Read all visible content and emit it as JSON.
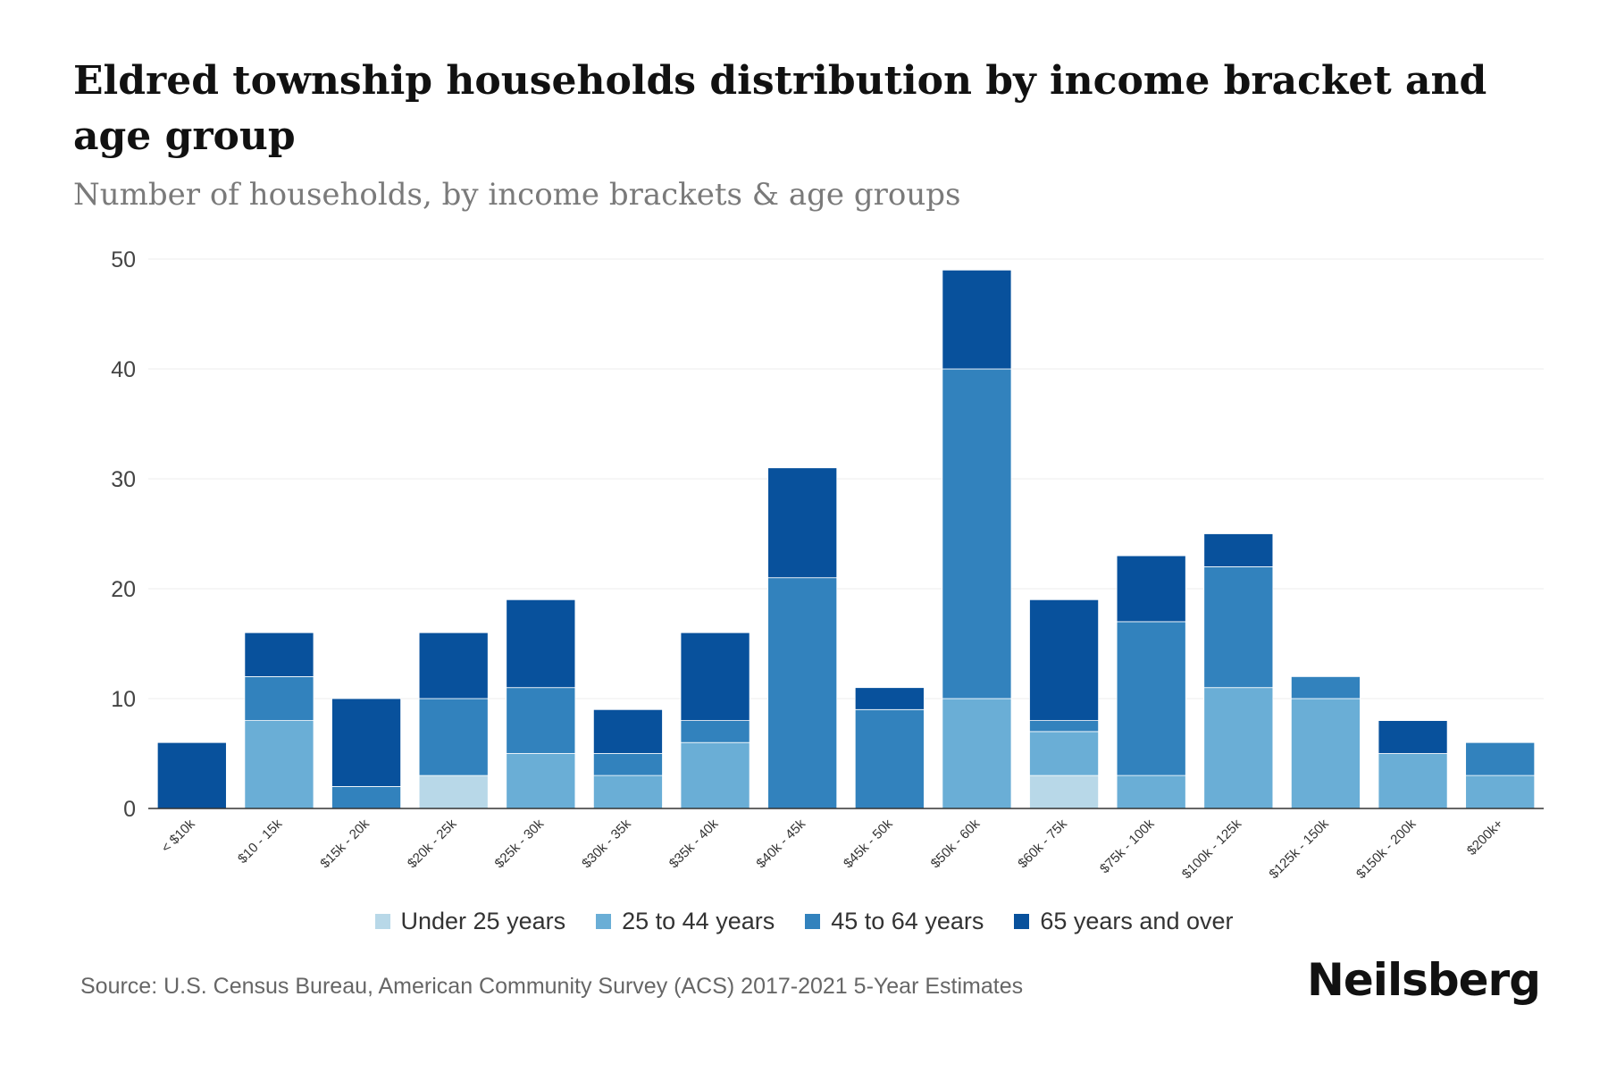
{
  "chart_data": {
    "type": "bar",
    "stacked": true,
    "title": "Eldred township households distribution by income bracket and age group",
    "subtitle": "Number of households, by income brackets & age groups",
    "xlabel": "",
    "ylabel": "",
    "ylim": [
      0,
      50
    ],
    "yticks": [
      0,
      10,
      20,
      30,
      40,
      50
    ],
    "grid": true,
    "legend_position": "bottom",
    "categories": [
      "< $10k",
      "$10 - 15k",
      "$15k - 20k",
      "$20k - 25k",
      "$25k - 30k",
      "$30k - 35k",
      "$35k - 40k",
      "$40k - 45k",
      "$45k - 50k",
      "$50k - 60k",
      "$60k - 75k",
      "$75k - 100k",
      "$100k - 125k",
      "$125k - 150k",
      "$150k - 200k",
      "$200k+"
    ],
    "series": [
      {
        "name": "Under 25 years",
        "color": "#b8d8e8",
        "values": [
          0,
          0,
          0,
          3,
          0,
          0,
          0,
          0,
          0,
          0,
          3,
          0,
          0,
          0,
          0,
          0
        ]
      },
      {
        "name": "25 to 44 years",
        "color": "#6aaed6",
        "values": [
          0,
          8,
          0,
          0,
          5,
          3,
          6,
          0,
          0,
          10,
          4,
          3,
          11,
          10,
          5,
          3
        ]
      },
      {
        "name": "45 to 64 years",
        "color": "#3282bd",
        "values": [
          0,
          4,
          2,
          7,
          6,
          2,
          2,
          21,
          9,
          30,
          1,
          14,
          11,
          2,
          0,
          3
        ]
      },
      {
        "name": "65 years and over",
        "color": "#08519c",
        "values": [
          6,
          4,
          8,
          6,
          8,
          4,
          8,
          10,
          2,
          9,
          11,
          6,
          3,
          0,
          3,
          0
        ]
      }
    ]
  },
  "footer": {
    "source": "Source: U.S. Census Bureau, American Community Survey (ACS) 2017-2021 5-Year Estimates",
    "brand": "Neilsberg"
  }
}
